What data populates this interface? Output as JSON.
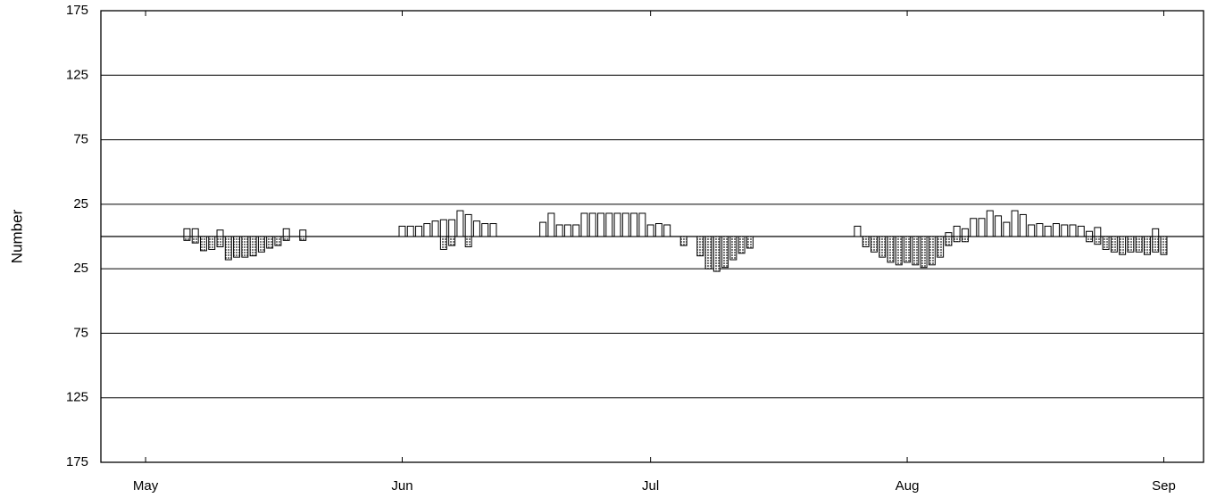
{
  "chart_data": {
    "type": "bar",
    "y_label": "Number",
    "x": [
      5,
      6,
      7,
      8,
      9,
      10,
      11,
      12,
      13,
      14,
      15,
      16,
      17,
      19,
      31,
      32,
      33,
      34,
      35,
      36,
      37,
      38,
      39,
      40,
      41,
      42,
      48,
      49,
      50,
      51,
      52,
      53,
      54,
      55,
      56,
      57,
      58,
      59,
      60,
      61,
      62,
      63,
      65,
      67,
      68,
      69,
      70,
      71,
      72,
      73,
      86,
      87,
      88,
      89,
      90,
      91,
      92,
      93,
      94,
      95,
      96,
      97,
      98,
      99,
      100,
      101,
      102,
      103,
      104,
      105,
      106,
      107,
      108,
      109,
      110,
      111,
      112,
      113,
      114,
      115,
      116,
      117,
      118,
      119,
      120,
      121,
      122,
      123
    ],
    "series": [
      {
        "color": "#ffffff",
        "values": [
          6,
          6,
          null,
          null,
          5,
          null,
          null,
          null,
          null,
          null,
          null,
          null,
          6,
          5,
          8,
          8,
          8,
          10,
          12,
          13,
          13,
          20,
          17,
          12,
          10,
          10,
          11,
          18,
          9,
          9,
          9,
          18,
          18,
          18,
          18,
          18,
          18,
          18,
          18,
          9,
          10,
          9,
          null,
          null,
          null,
          null,
          null,
          null,
          null,
          null,
          8,
          null,
          null,
          null,
          null,
          null,
          null,
          null,
          null,
          null,
          null,
          3,
          8,
          6,
          14,
          14,
          20,
          16,
          11,
          20,
          17,
          9,
          10,
          8,
          10,
          9,
          9,
          8,
          4,
          7,
          null,
          null,
          null,
          null,
          null,
          null,
          6,
          null
        ]
      },
      {
        "color": "#7a7a7a",
        "values": [
          -3,
          -5,
          -11,
          -10,
          -8,
          -18,
          -16,
          -16,
          -15,
          -12,
          -9,
          -7,
          -3,
          -3,
          null,
          null,
          null,
          null,
          null,
          -10,
          -7,
          null,
          -8,
          null,
          null,
          null,
          null,
          null,
          null,
          null,
          null,
          null,
          null,
          null,
          null,
          null,
          null,
          null,
          null,
          null,
          null,
          null,
          -7,
          -15,
          -25,
          -27,
          -24,
          -18,
          -13,
          -9,
          null,
          -8,
          -12,
          -16,
          -20,
          -22,
          -20,
          -22,
          -24,
          -22,
          -16,
          -7,
          -4,
          -4,
          null,
          null,
          null,
          null,
          null,
          null,
          null,
          null,
          null,
          null,
          null,
          null,
          null,
          null,
          -4,
          -6,
          -10,
          -12,
          -14,
          -12,
          -12,
          -14,
          -12,
          -14
        ]
      }
    ],
    "xlim": [
      -5.4,
      127.8
    ],
    "xticks": [
      {
        "value": 0,
        "label": "May"
      },
      {
        "value": 31,
        "label": "Jun"
      },
      {
        "value": 61,
        "label": "Jul"
      },
      {
        "value": 92,
        "label": "Aug"
      },
      {
        "value": 123,
        "label": "Sep"
      }
    ],
    "ylim": [
      -175,
      175
    ],
    "yticks": [
      175,
      125,
      75,
      25,
      {
        "value": -25,
        "label": "25"
      },
      {
        "value": -75,
        "label": "75"
      },
      {
        "value": -125,
        "label": "125"
      },
      {
        "value": -175,
        "label": "175"
      }
    ],
    "grid": true
  }
}
